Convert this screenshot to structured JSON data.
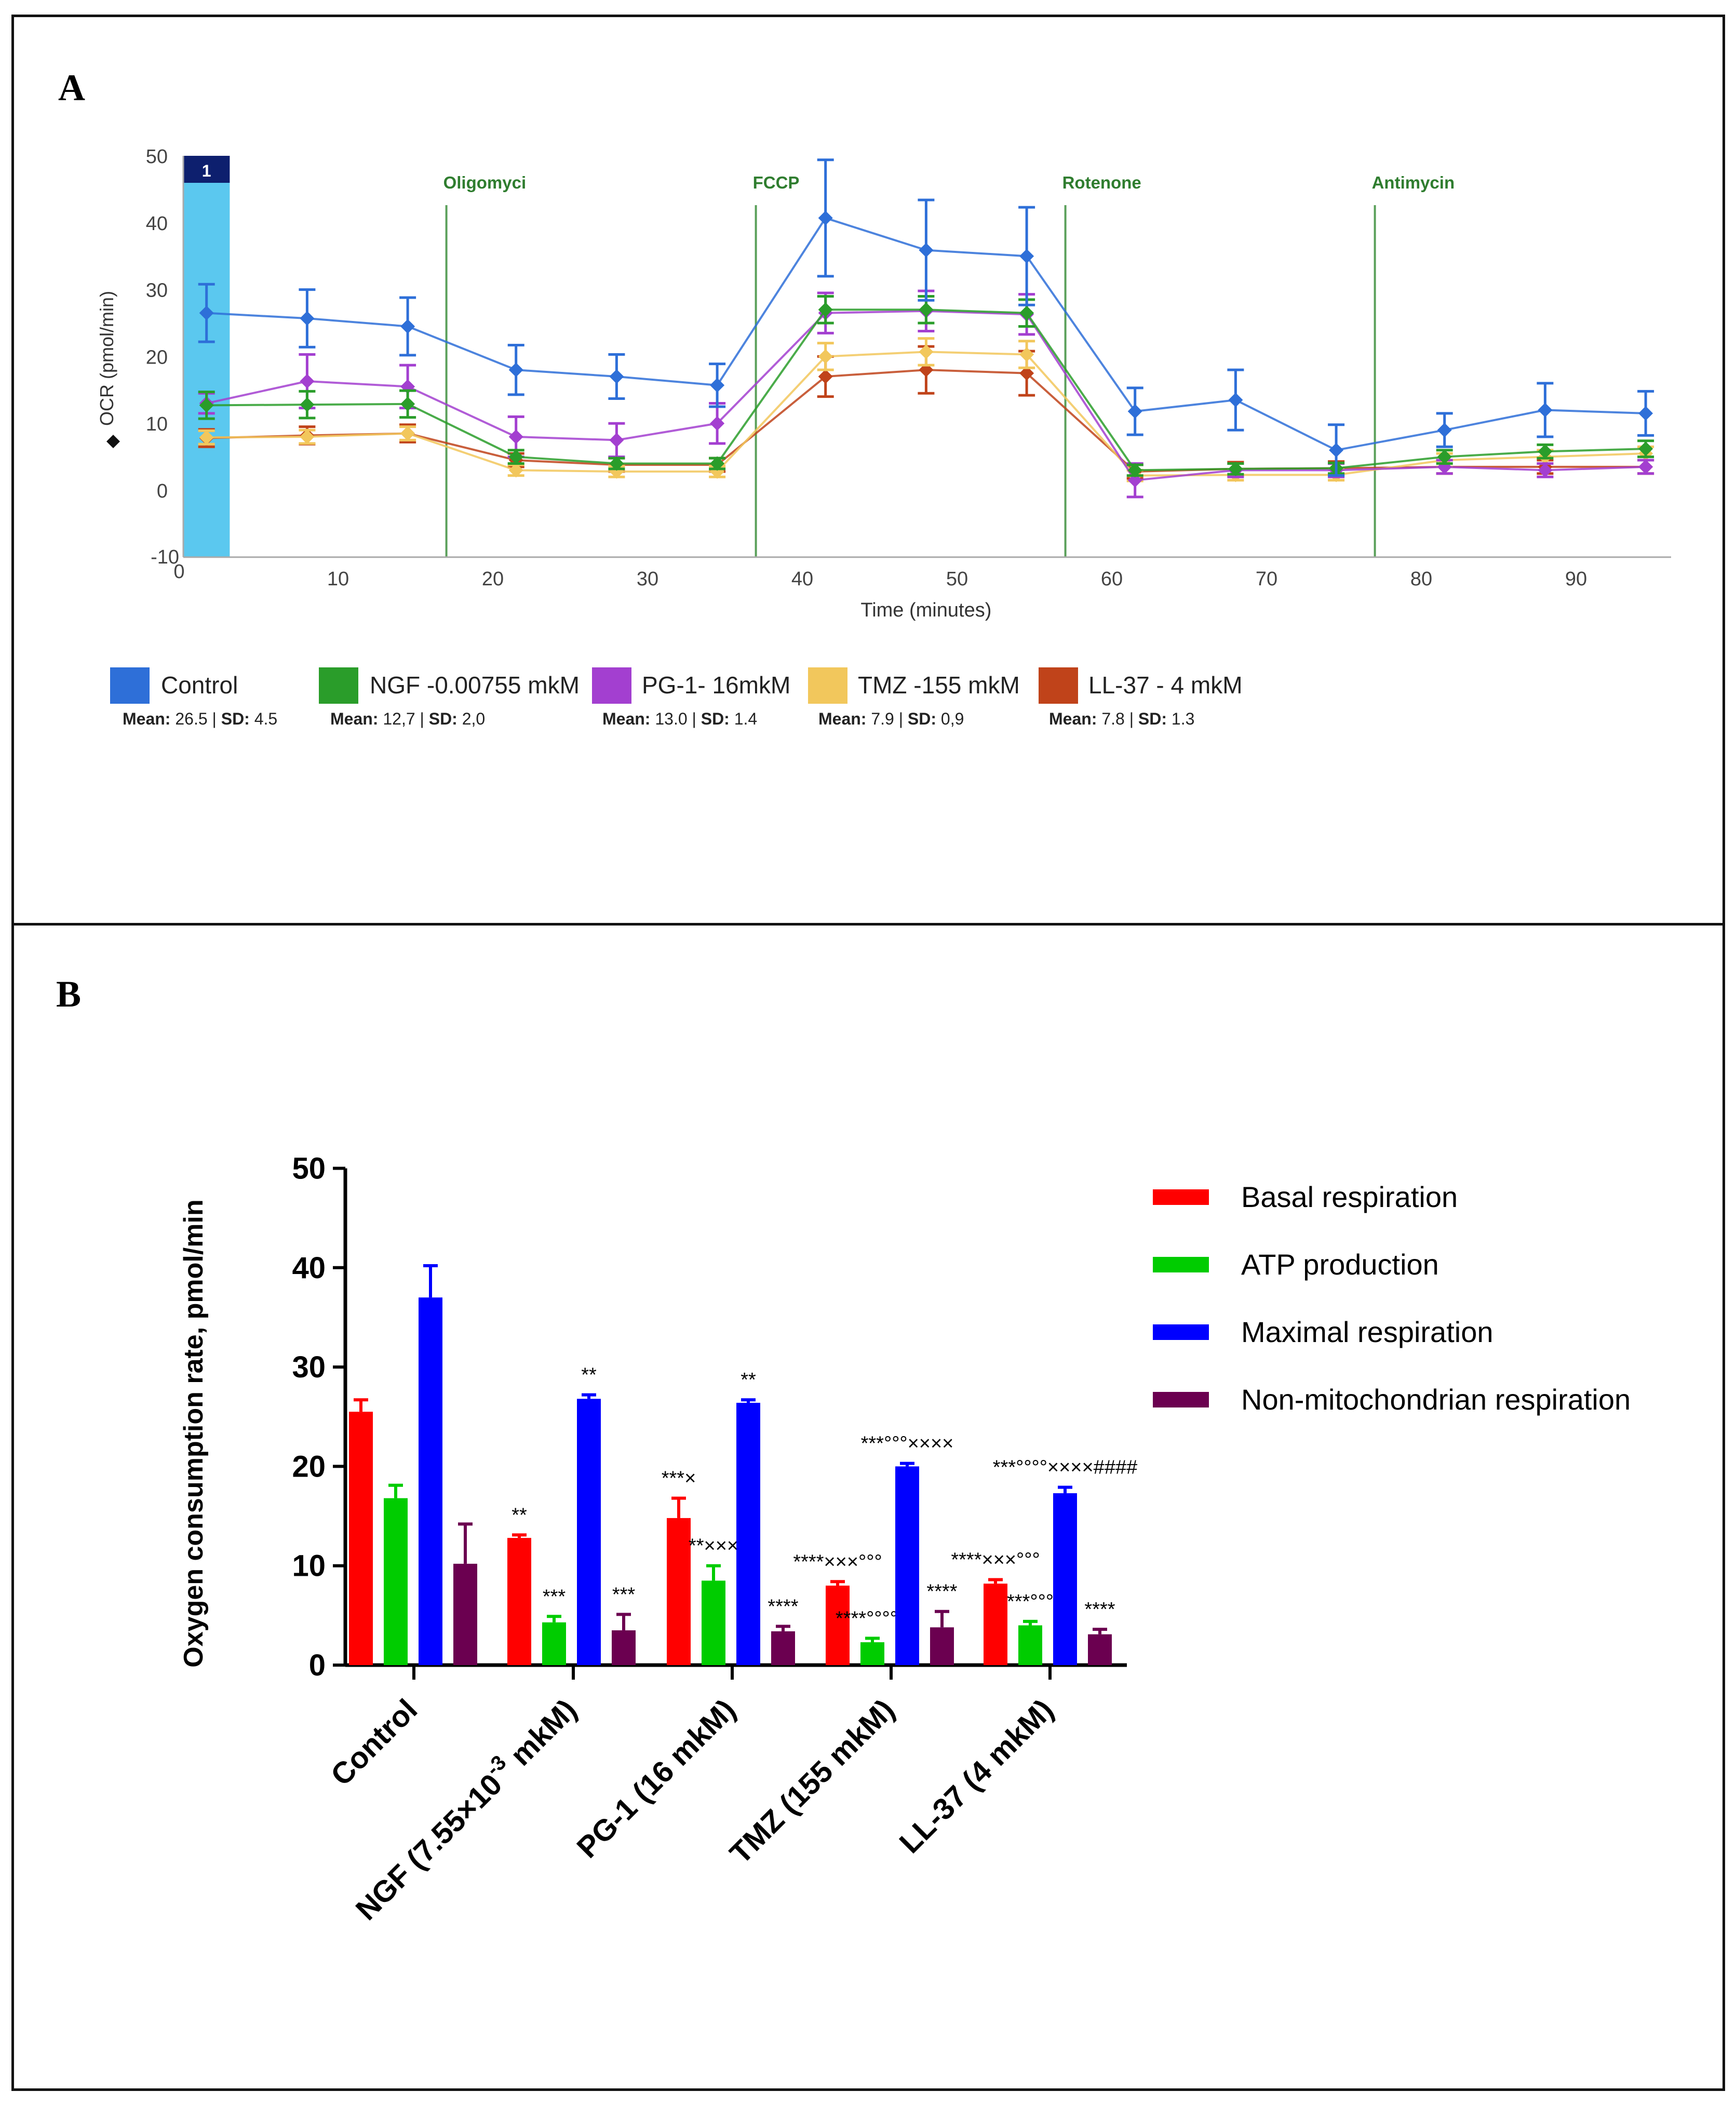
{
  "panels": {
    "a_label": "A",
    "b_label": "B"
  },
  "colors": {
    "control": "#2e6fd8",
    "ngf": "#2a9d2a",
    "pg1": "#a33fd0",
    "tmz": "#f2c75c",
    "ll37": "#c0431a",
    "basal": "#ff0000",
    "atp": "#00cc00",
    "maximal": "#0000ff",
    "nonmito": "#6b0050",
    "injection_line": "#5aa05a",
    "injection_box": "#5bc8ef"
  },
  "chart_data": [
    {
      "id": "panel-a",
      "type": "line",
      "title": "",
      "xlabel": "Time (minutes)",
      "ylabel": "OCR (pmol/min)",
      "xlim": [
        0,
        96
      ],
      "ylim": [
        -10,
        50
      ],
      "xticks": [
        "10",
        "20",
        "30",
        "40",
        "50",
        "60",
        "70",
        "80",
        "90"
      ],
      "xtick_values": [
        10,
        20,
        30,
        40,
        50,
        60,
        70,
        80,
        90
      ],
      "x_origin_label": "0",
      "yticks": [
        "50",
        "40",
        "30",
        "20",
        "10",
        "0"
      ],
      "ytick_values": [
        50,
        40,
        30,
        20,
        10,
        0
      ],
      "y_min_label": "-10",
      "injection_box": {
        "label": "1",
        "x_start": 0,
        "x_end": 3
      },
      "injections": [
        {
          "label": "Oligomyci",
          "x": 17
        },
        {
          "label": "FCCP",
          "x": 37
        },
        {
          "label": "Rotenone",
          "x": 57
        },
        {
          "label": "Antimycin",
          "x": 77
        }
      ],
      "x": [
        1.5,
        8,
        14.5,
        21.5,
        28,
        34.5,
        41.5,
        48,
        54.5,
        61.5,
        68,
        74.5,
        81.5,
        88,
        94.5
      ],
      "series": [
        {
          "name": "Control",
          "key": "control",
          "stats_label": "Mean:",
          "mean": "26.5",
          "sd_label": "SD:",
          "sd": "4.5",
          "values": [
            26.5,
            25.7,
            24.5,
            18.0,
            17.0,
            15.7,
            40.7,
            35.9,
            35.0,
            11.8,
            13.5,
            6.0,
            9.0,
            12.0,
            11.5
          ],
          "errors": [
            4.3,
            4.3,
            4.3,
            3.7,
            3.3,
            3.2,
            8.7,
            7.5,
            7.3,
            3.5,
            4.5,
            3.8,
            2.5,
            4.0,
            3.3
          ]
        },
        {
          "name": "NGF -0.00755 mkM",
          "key": "ngf",
          "stats_label": "Mean:",
          "mean": "12,7",
          "sd_label": "SD:",
          "sd": "2,0",
          "values": [
            12.7,
            12.8,
            12.9,
            5.0,
            4.0,
            4.0,
            27.0,
            27.0,
            26.5,
            3.0,
            3.2,
            3.3,
            5.0,
            5.8,
            6.2
          ],
          "errors": [
            2.0,
            2.0,
            2.0,
            1.0,
            0.8,
            0.8,
            2.0,
            2.0,
            2.0,
            0.8,
            0.8,
            0.8,
            1.0,
            1.0,
            1.2
          ]
        },
        {
          "name": "PG-1- 16mkM",
          "key": "pg1",
          "stats_label": "Mean:",
          "mean": "13.0",
          "sd_label": "SD:",
          "sd": "1.4",
          "values": [
            13.0,
            16.3,
            15.5,
            8.0,
            7.5,
            10.0,
            26.5,
            26.8,
            26.3,
            1.5,
            3.0,
            3.0,
            3.5,
            3.0,
            3.5
          ],
          "errors": [
            1.5,
            4.0,
            3.2,
            3.0,
            2.5,
            3.0,
            3.0,
            3.0,
            3.0,
            2.5,
            1.0,
            1.0,
            1.0,
            1.0,
            1.0
          ]
        },
        {
          "name": "TMZ -155 mkM",
          "key": "tmz",
          "stats_label": "Mean:",
          "mean": "7.9",
          "sd_label": "SD:",
          "sd": "0,9",
          "values": [
            7.9,
            8.0,
            8.5,
            3.0,
            2.8,
            2.8,
            20.0,
            20.7,
            20.3,
            2.2,
            2.3,
            2.3,
            4.5,
            5.0,
            5.5
          ],
          "errors": [
            1.0,
            1.0,
            1.0,
            0.8,
            0.8,
            0.8,
            2.0,
            2.0,
            2.0,
            0.8,
            0.8,
            0.8,
            1.0,
            1.0,
            1.0
          ]
        },
        {
          "name": "LL-37 - 4 mkM",
          "key": "ll37",
          "stats_label": "Mean:",
          "mean": "7.8",
          "sd_label": "SD:",
          "sd": "1.3",
          "values": [
            7.8,
            8.2,
            8.5,
            4.5,
            3.8,
            3.8,
            17.0,
            18.0,
            17.5,
            2.8,
            3.2,
            3.3,
            3.5,
            3.5,
            3.5
          ],
          "errors": [
            1.3,
            1.3,
            1.3,
            1.0,
            1.0,
            1.0,
            3.0,
            3.5,
            3.3,
            1.0,
            1.0,
            1.0,
            1.0,
            1.0,
            1.0
          ]
        }
      ]
    },
    {
      "id": "panel-b",
      "type": "bar",
      "title": "",
      "xlabel": "",
      "ylabel": "Oxygen consumption rate, pmol/min",
      "ylim": [
        0,
        50
      ],
      "yticks": [
        "0",
        "10",
        "20",
        "30",
        "40",
        "50"
      ],
      "ytick_values": [
        0,
        10,
        20,
        30,
        40,
        50
      ],
      "categories": [
        "Control",
        "NGF (7.55×10",
        "PG-1 (16 mkM)",
        "TMZ (155 mkM)",
        "LL-37 (4 mkM)"
      ],
      "ngf_exponent": "-3",
      "ngf_suffix": " mkM)",
      "series": [
        {
          "name": "Basal respiration",
          "key": "basal",
          "values": [
            25.5,
            12.8,
            14.8,
            8.0,
            8.2
          ],
          "errors": [
            1.2,
            0.3,
            2.0,
            0.4,
            0.4
          ],
          "annotations": [
            "",
            "**",
            "***×",
            "****×××°°°",
            "****×××°°°"
          ]
        },
        {
          "name": "ATP production",
          "key": "atp",
          "values": [
            16.8,
            4.3,
            8.5,
            2.3,
            4.0
          ],
          "errors": [
            1.3,
            0.6,
            1.5,
            0.4,
            0.4
          ],
          "annotations": [
            "",
            "***",
            "**×××",
            "****°°°°×",
            "***°°°"
          ]
        },
        {
          "name": "Maximal respiration",
          "key": "maximal",
          "values": [
            37.0,
            26.8,
            26.4,
            20.0,
            17.3
          ],
          "errors": [
            3.2,
            0.4,
            0.3,
            0.3,
            0.6
          ],
          "annotations": [
            "",
            "**",
            "**",
            "***°°°××××",
            "***°°°°××××####"
          ]
        },
        {
          "name": "Non-mitochondrian respiration",
          "key": "nonmito",
          "values": [
            10.2,
            3.5,
            3.4,
            3.8,
            3.1
          ],
          "errors": [
            4.0,
            1.6,
            0.5,
            1.6,
            0.5
          ],
          "annotations": [
            "",
            "***",
            "****",
            "****",
            "****"
          ]
        }
      ]
    }
  ]
}
